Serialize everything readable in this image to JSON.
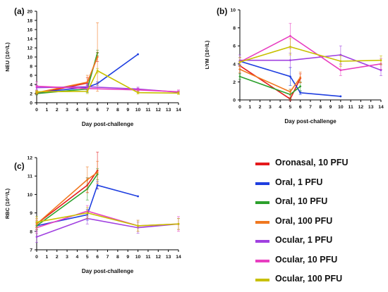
{
  "chart_data": [
    {
      "type": "line",
      "panel_label": "(a)",
      "ylabel": "NEU (10⁹/L)",
      "xlabel": "Day post-challenge",
      "ylim": [
        0,
        20
      ],
      "yticks": [
        0,
        2,
        4,
        6,
        8,
        10,
        12,
        14,
        16,
        18,
        20
      ],
      "xticks": [
        0,
        1,
        2,
        3,
        4,
        5,
        6,
        7,
        8,
        9,
        10,
        11,
        12,
        13,
        14
      ],
      "series": [
        {
          "name": "Oronasal, 10 PFU",
          "color": "#e41a1c",
          "points": [
            [
              0,
              2.0,
              0.2
            ],
            [
              5,
              4.3,
              1.2
            ],
            [
              6,
              10.0,
              1.0
            ]
          ]
        },
        {
          "name": "Oral, 1 PFU",
          "color": "#1f3fe0",
          "points": [
            [
              0,
              2.2,
              0.3
            ],
            [
              5,
              3.4,
              0.6
            ],
            [
              6,
              4.2,
              0.4
            ],
            [
              10,
              10.6,
              0
            ]
          ]
        },
        {
          "name": "Oral, 10 PFU",
          "color": "#2ca02c",
          "points": [
            [
              0,
              2.0,
              0.3
            ],
            [
              5,
              3.0,
              0.8
            ],
            [
              6,
              10.9,
              0.6
            ]
          ]
        },
        {
          "name": "Oral, 100 PFU",
          "color": "#f07820",
          "points": [
            [
              0,
              2.2,
              0.3
            ],
            [
              5,
              4.5,
              1.5
            ],
            [
              6,
              10.0,
              7.5
            ]
          ]
        },
        {
          "name": "Ocular, 1 PFU",
          "color": "#a040e0",
          "points": [
            [
              0,
              3.3,
              0.5
            ],
            [
              5,
              3.5,
              0.7
            ],
            [
              10,
              3.0,
              0.4
            ],
            [
              14,
              2.3,
              0.3
            ]
          ]
        },
        {
          "name": "Ocular, 10 PFU",
          "color": "#e83ec0",
          "points": [
            [
              0,
              3.6,
              1.0
            ],
            [
              5,
              3.1,
              0.7
            ],
            [
              10,
              2.8,
              0.4
            ],
            [
              14,
              2.4,
              0.4
            ]
          ]
        },
        {
          "name": "Ocular, 100 PFU",
          "color": "#c8c000",
          "points": [
            [
              0,
              2.4,
              0.3
            ],
            [
              5,
              2.5,
              0.5
            ],
            [
              6,
              7.0,
              0.5
            ],
            [
              10,
              2.2,
              0.3
            ],
            [
              14,
              2.1,
              0.3
            ]
          ]
        }
      ]
    },
    {
      "type": "line",
      "panel_label": "(b)",
      "ylabel": "LYM (10⁹/L)",
      "xlabel": "Day post-challenge",
      "ylim": [
        0,
        10
      ],
      "yticks": [
        0,
        2,
        4,
        6,
        8,
        10
      ],
      "xticks": [
        0,
        1,
        2,
        3,
        4,
        5,
        6,
        7,
        8,
        9,
        10,
        11,
        12,
        13,
        14
      ],
      "series": [
        {
          "name": "Oronasal, 10 PFU",
          "color": "#e41a1c",
          "points": [
            [
              0,
              3.8,
              0.4
            ],
            [
              5,
              0.1,
              0.2
            ],
            [
              6,
              2.4,
              0.5
            ]
          ]
        },
        {
          "name": "Oral, 1 PFU",
          "color": "#1f3fe0",
          "points": [
            [
              0,
              4.3,
              0.4
            ],
            [
              5,
              2.6,
              1.0
            ],
            [
              6,
              0.8,
              0.2
            ],
            [
              10,
              0.4,
              0
            ]
          ]
        },
        {
          "name": "Oral, 10 PFU",
          "color": "#2ca02c",
          "points": [
            [
              0,
              2.6,
              0.3
            ],
            [
              5,
              0.6,
              0.5
            ],
            [
              6,
              1.5,
              0.5
            ]
          ]
        },
        {
          "name": "Oral, 100 PFU",
          "color": "#f07820",
          "points": [
            [
              0,
              3.4,
              0.4
            ],
            [
              5,
              0.9,
              0.3
            ],
            [
              6,
              2.5,
              0.6
            ]
          ]
        },
        {
          "name": "Ocular, 1 PFU",
          "color": "#a040e0",
          "points": [
            [
              0,
              4.4,
              0.6
            ],
            [
              5,
              4.4,
              0.8
            ],
            [
              10,
              5.0,
              1.0
            ],
            [
              14,
              3.3,
              0.6
            ]
          ]
        },
        {
          "name": "Ocular, 10 PFU",
          "color": "#e83ec0",
          "points": [
            [
              0,
              4.2,
              0.5
            ],
            [
              5,
              7.1,
              1.4
            ],
            [
              10,
              3.3,
              0.6
            ],
            [
              14,
              4.0,
              0.6
            ]
          ]
        },
        {
          "name": "Ocular, 100 PFU",
          "color": "#c8c000",
          "points": [
            [
              0,
              4.2,
              0.5
            ],
            [
              5,
              5.9,
              0.9
            ],
            [
              10,
              4.3,
              0.6
            ],
            [
              14,
              4.4,
              0.5
            ]
          ]
        }
      ]
    },
    {
      "type": "line",
      "panel_label": "(c)",
      "ylabel": "RBC (10¹²/L)",
      "xlabel": "Day post-challenge",
      "ylim": [
        7,
        12
      ],
      "yticks": [
        7,
        8,
        9,
        10,
        11,
        12
      ],
      "xticks": [
        0,
        1,
        2,
        3,
        4,
        5,
        6,
        7,
        8,
        9,
        10,
        11,
        12,
        13,
        14
      ],
      "series": [
        {
          "name": "Oronasal, 10 PFU",
          "color": "#e41a1c",
          "points": [
            [
              0,
              8.4,
              0.2
            ],
            [
              5,
              10.5,
              0.4
            ],
            [
              6,
              11.3,
              1.0
            ]
          ]
        },
        {
          "name": "Oral, 1 PFU",
          "color": "#1f3fe0",
          "points": [
            [
              0,
              8.3,
              0.2
            ],
            [
              5,
              8.9,
              0.3
            ],
            [
              6,
              10.5,
              0.2
            ],
            [
              10,
              9.9,
              0
            ]
          ]
        },
        {
          "name": "Oral, 10 PFU",
          "color": "#2ca02c",
          "points": [
            [
              0,
              8.3,
              0.2
            ],
            [
              5,
              10.3,
              0.6
            ],
            [
              6,
              11.1,
              0.3
            ]
          ]
        },
        {
          "name": "Oral, 100 PFU",
          "color": "#f07820",
          "points": [
            [
              0,
              8.4,
              0.3
            ],
            [
              5,
              10.8,
              0.7
            ],
            [
              6,
              11.2,
              0.6
            ]
          ]
        },
        {
          "name": "Ocular, 1 PFU",
          "color": "#a040e0",
          "points": [
            [
              0,
              7.7,
              0.3
            ],
            [
              5,
              8.7,
              0.3
            ],
            [
              10,
              8.2,
              0.3
            ],
            [
              14,
              8.4,
              0.3
            ]
          ]
        },
        {
          "name": "Ocular, 10 PFU",
          "color": "#e83ec0",
          "points": [
            [
              0,
              8.2,
              0.3
            ],
            [
              5,
              9.1,
              0.3
            ],
            [
              10,
              8.3,
              0.3
            ],
            [
              14,
              8.4,
              0.4
            ]
          ]
        },
        {
          "name": "Ocular, 100 PFU",
          "color": "#c8c000",
          "points": [
            [
              0,
              8.5,
              0.3
            ],
            [
              5,
              9.0,
              0.3
            ],
            [
              10,
              8.3,
              0.3
            ],
            [
              14,
              8.4,
              0.3
            ]
          ]
        }
      ]
    }
  ],
  "legend": {
    "items": [
      {
        "label": "Oronasal, 10 PFU",
        "color": "#e41a1c"
      },
      {
        "label": "Oral, 1 PFU",
        "color": "#1f3fe0"
      },
      {
        "label": "Oral, 10 PFU",
        "color": "#2ca02c"
      },
      {
        "label": "Oral, 100 PFU",
        "color": "#f07820"
      },
      {
        "label": "Ocular, 1 PFU",
        "color": "#a040e0"
      },
      {
        "label": "Ocular, 10 PFU",
        "color": "#e83ec0"
      },
      {
        "label": "Ocular, 100 PFU",
        "color": "#c8c000"
      }
    ]
  }
}
